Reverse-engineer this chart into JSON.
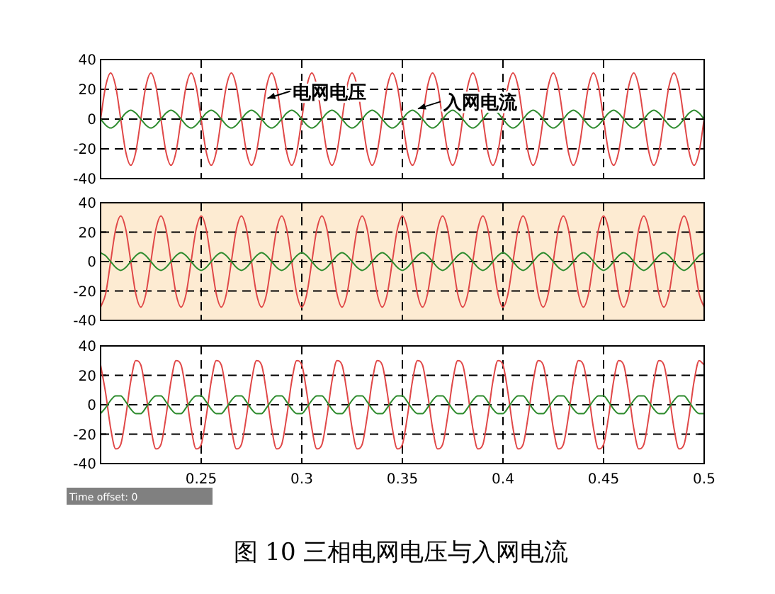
{
  "chart_data": [
    {
      "type": "line",
      "xlim": [
        0.2,
        0.5
      ],
      "ylim": [
        -40,
        40
      ],
      "yticks": [
        -40,
        -20,
        0,
        20,
        40
      ],
      "xticks": [
        0.25,
        0.3,
        0.35,
        0.4,
        0.45,
        0.5
      ],
      "grid": true,
      "tick_labels": "y",
      "line_style": "solid",
      "x": [
        0.2,
        0.2025,
        0.205,
        0.2075,
        0.21,
        0.2125,
        0.215,
        0.2175,
        0.22,
        0.2225,
        0.225,
        0.2275,
        0.23,
        0.2325,
        0.235,
        0.2375,
        0.24,
        0.2425,
        0.245,
        0.2475,
        0.25,
        0.2525,
        0.255,
        0.2575,
        0.26,
        0.2625,
        0.265,
        0.2675,
        0.27,
        0.2725,
        0.275,
        0.2775,
        0.28,
        0.2825,
        0.285,
        0.2875,
        0.29,
        0.2925,
        0.295,
        0.2975,
        0.3,
        0.3025,
        0.305,
        0.3075,
        0.31,
        0.3125,
        0.315,
        0.3175,
        0.32,
        0.3225,
        0.325,
        0.3275,
        0.33,
        0.3325,
        0.335,
        0.3375,
        0.34,
        0.3425,
        0.345,
        0.3475,
        0.35,
        0.3525,
        0.355,
        0.3575,
        0.36,
        0.3625,
        0.365,
        0.3675,
        0.37,
        0.3725,
        0.375,
        0.3775,
        0.38,
        0.3825,
        0.385,
        0.3875,
        0.39,
        0.3925,
        0.395,
        0.3975,
        0.4,
        0.4025,
        0.405,
        0.4075,
        0.41,
        0.4125,
        0.415,
        0.4175,
        0.42,
        0.4225,
        0.425,
        0.4275,
        0.43,
        0.4325,
        0.435,
        0.4375,
        0.44,
        0.4425,
        0.445,
        0.4475,
        0.45,
        0.4525,
        0.455,
        0.4575,
        0.46,
        0.4625,
        0.465,
        0.4675,
        0.47,
        0.4725,
        0.475,
        0.4775,
        0.48,
        0.4825,
        0.485,
        0.4875,
        0.49,
        0.4925,
        0.495,
        0.4975,
        0.5
      ],
      "series": [
        {
          "color": "#e04848",
          "values": [
            0,
            22,
            31,
            22,
            0,
            -22,
            -31,
            -22,
            0,
            22,
            31,
            22,
            0,
            -22,
            -31,
            -22,
            0,
            22,
            31,
            22,
            0,
            -22,
            -31,
            -22,
            0,
            22,
            31,
            22,
            0,
            -22,
            -31,
            -22,
            0,
            22,
            31,
            22,
            0,
            -22,
            -31,
            -22,
            0,
            22,
            31,
            22,
            0,
            -22,
            -31,
            -22,
            0,
            22,
            31,
            22,
            0,
            -22,
            -31,
            -22,
            0,
            22,
            31,
            22,
            0,
            -22,
            -31,
            -22,
            0,
            22,
            31,
            22,
            0,
            -22,
            -31,
            -22,
            0,
            22,
            31,
            22,
            0,
            -22,
            -31,
            -22,
            0,
            22,
            31,
            22,
            0,
            -22,
            -31,
            -22,
            0,
            22,
            31,
            22,
            0,
            -22,
            -31,
            -22,
            0,
            22,
            31,
            22,
            0,
            -22,
            -31,
            -22,
            0,
            22,
            31,
            22,
            0,
            -22,
            -31,
            -22,
            0,
            22,
            31,
            22,
            0,
            -22,
            -31,
            -22,
            0
          ]
        },
        {
          "color": "#2e8b2e",
          "values": [
            0,
            -4,
            -6,
            -4,
            0,
            4,
            6,
            4,
            0,
            -4,
            -6,
            -4,
            0,
            4,
            6,
            4,
            0,
            -4,
            -6,
            -4,
            0,
            4,
            6,
            4,
            0,
            -4,
            -6,
            -4,
            0,
            4,
            6,
            4,
            0,
            -4,
            -6,
            -4,
            0,
            4,
            6,
            4,
            0,
            -4,
            -6,
            -4,
            0,
            4,
            6,
            4,
            0,
            -4,
            -6,
            -4,
            0,
            4,
            6,
            4,
            0,
            -4,
            -6,
            -4,
            0,
            4,
            6,
            4,
            0,
            -4,
            -6,
            -4,
            0,
            4,
            6,
            4,
            0,
            -4,
            -6,
            -4,
            0,
            4,
            6,
            4,
            0,
            -4,
            -6,
            -4,
            0,
            4,
            6,
            4,
            0,
            -4,
            -6,
            -4,
            0,
            4,
            6,
            4,
            0,
            -4,
            -6,
            -4,
            0,
            4,
            6,
            4,
            0,
            -4,
            -6,
            -4,
            0,
            4,
            6,
            4,
            0,
            -4,
            -6,
            -4,
            0,
            4,
            6,
            4,
            0
          ]
        }
      ],
      "annotations": [
        {
          "text": "电网电压",
          "x": 0.2815,
          "y": 13
        },
        {
          "text": "入网电流",
          "x": 0.3563,
          "y": 6
        }
      ]
    },
    {
      "type": "line",
      "xlim": [
        0.2,
        0.5
      ],
      "ylim": [
        -40,
        40
      ],
      "yticks": [
        -40,
        -20,
        0,
        20,
        40
      ],
      "xticks": [
        0.25,
        0.3,
        0.35,
        0.4,
        0.45,
        0.5
      ],
      "grid": true,
      "tick_labels": "y",
      "line_style": "solid",
      "x": [
        0.2,
        0.2025,
        0.205,
        0.2075,
        0.21,
        0.2125,
        0.215,
        0.2175,
        0.22,
        0.2225,
        0.225,
        0.2275,
        0.23,
        0.2325,
        0.235,
        0.2375,
        0.24,
        0.2425,
        0.245,
        0.2475,
        0.25,
        0.2525,
        0.255,
        0.2575,
        0.26,
        0.2625,
        0.265,
        0.2675,
        0.27,
        0.2725,
        0.275,
        0.2775,
        0.28,
        0.2825,
        0.285,
        0.2875,
        0.29,
        0.2925,
        0.295,
        0.2975,
        0.3,
        0.3025,
        0.305,
        0.3075,
        0.31,
        0.3125,
        0.315,
        0.3175,
        0.32,
        0.3225,
        0.325,
        0.3275,
        0.33,
        0.3325,
        0.335,
        0.3375,
        0.34,
        0.3425,
        0.345,
        0.3475,
        0.35,
        0.3525,
        0.355,
        0.3575,
        0.36,
        0.3625,
        0.365,
        0.3675,
        0.37,
        0.3725,
        0.375,
        0.3775,
        0.38,
        0.3825,
        0.385,
        0.3875,
        0.39,
        0.3925,
        0.395,
        0.3975,
        0.4,
        0.4025,
        0.405,
        0.4075,
        0.41,
        0.4125,
        0.415,
        0.4175,
        0.42,
        0.4225,
        0.425,
        0.4275,
        0.43,
        0.4325,
        0.435,
        0.4375,
        0.44,
        0.4425,
        0.445,
        0.4475,
        0.45,
        0.4525,
        0.455,
        0.4575,
        0.46,
        0.4625,
        0.465,
        0.4675,
        0.47,
        0.4725,
        0.475,
        0.4775,
        0.48,
        0.4825,
        0.485,
        0.4875,
        0.49,
        0.4925,
        0.495,
        0.4975,
        0.5
      ],
      "series": [
        {
          "color": "#e04848",
          "values": [
            -31,
            -22,
            0,
            22,
            31,
            22,
            0,
            -22,
            -31,
            -22,
            0,
            22,
            31,
            22,
            0,
            -22,
            -31,
            -22,
            0,
            22,
            31,
            22,
            0,
            -22,
            -31,
            -22,
            0,
            22,
            31,
            22,
            0,
            -22,
            -31,
            -22,
            0,
            22,
            31,
            22,
            0,
            -22,
            -31,
            -22,
            0,
            22,
            31,
            22,
            0,
            -22,
            -31,
            -22,
            0,
            22,
            31,
            22,
            0,
            -22,
            -31,
            -22,
            0,
            22,
            31,
            22,
            0,
            -22,
            -31,
            -22,
            0,
            22,
            31,
            22,
            0,
            -22,
            -31,
            -22,
            0,
            22,
            31,
            22,
            0,
            -22,
            -31,
            -22,
            0,
            22,
            31,
            22,
            0,
            -22,
            -31,
            -22,
            0,
            22,
            31,
            22,
            0,
            -22,
            -31,
            -22,
            0,
            22,
            31,
            22,
            0,
            -22,
            -31,
            -22,
            0,
            22,
            31,
            22,
            0,
            -22,
            -31,
            -22,
            0,
            22,
            31,
            22,
            0,
            -22,
            -31
          ]
        },
        {
          "color": "#2e8b2e",
          "values": [
            6,
            4,
            0,
            -4,
            -6,
            -4,
            0,
            4,
            6,
            4,
            0,
            -4,
            -6,
            -4,
            0,
            4,
            6,
            4,
            0,
            -4,
            -6,
            -4,
            0,
            4,
            6,
            4,
            0,
            -4,
            -6,
            -4,
            0,
            4,
            6,
            4,
            0,
            -4,
            -6,
            -4,
            0,
            4,
            6,
            4,
            0,
            -4,
            -6,
            -4,
            0,
            4,
            6,
            4,
            0,
            -4,
            -6,
            -4,
            0,
            4,
            6,
            4,
            0,
            -4,
            -6,
            -4,
            0,
            4,
            6,
            4,
            0,
            -4,
            -6,
            -4,
            0,
            4,
            6,
            4,
            0,
            -4,
            -6,
            -4,
            0,
            4,
            6,
            4,
            0,
            -4,
            -6,
            -4,
            0,
            4,
            6,
            4,
            0,
            -4,
            -6,
            -4,
            0,
            4,
            6,
            4,
            0,
            -4,
            -6,
            -4,
            0,
            4,
            6,
            4,
            0,
            -4,
            -6,
            -4,
            0,
            4,
            6,
            4,
            0,
            -4,
            -6,
            -4,
            0,
            4,
            6
          ]
        }
      ]
    },
    {
      "type": "line",
      "xlim": [
        0.2,
        0.5
      ],
      "ylim": [
        -40,
        40
      ],
      "yticks": [
        -40,
        -20,
        0,
        20,
        40
      ],
      "xticks": [
        0.25,
        0.3,
        0.35,
        0.4,
        0.45,
        0.5
      ],
      "grid": true,
      "line_style": "solid",
      "x": [
        0.2,
        0.2025,
        0.205,
        0.2075,
        0.21,
        0.2125,
        0.215,
        0.2175,
        0.22,
        0.2225,
        0.225,
        0.2275,
        0.23,
        0.2325,
        0.235,
        0.2375,
        0.24,
        0.2425,
        0.245,
        0.2475,
        0.25,
        0.2525,
        0.255,
        0.2575,
        0.26,
        0.2625,
        0.265,
        0.2675,
        0.27,
        0.2725,
        0.275,
        0.2775,
        0.28,
        0.2825,
        0.285,
        0.2875,
        0.29,
        0.2925,
        0.295,
        0.2975,
        0.3,
        0.3025,
        0.305,
        0.3075,
        0.31,
        0.3125,
        0.315,
        0.3175,
        0.32,
        0.3225,
        0.325,
        0.3275,
        0.33,
        0.3325,
        0.335,
        0.3375,
        0.34,
        0.3425,
        0.345,
        0.3475,
        0.35,
        0.3525,
        0.355,
        0.3575,
        0.36,
        0.3625,
        0.365,
        0.3675,
        0.37,
        0.3725,
        0.375,
        0.3775,
        0.38,
        0.3825,
        0.385,
        0.3875,
        0.39,
        0.3925,
        0.395,
        0.3975,
        0.4,
        0.4025,
        0.405,
        0.4075,
        0.41,
        0.4125,
        0.415,
        0.4175,
        0.42,
        0.4225,
        0.425,
        0.4275,
        0.43,
        0.4325,
        0.435,
        0.4375,
        0.44,
        0.4425,
        0.445,
        0.4475,
        0.45,
        0.4525,
        0.455,
        0.4575,
        0.46,
        0.4625,
        0.465,
        0.4675,
        0.47,
        0.4725,
        0.475,
        0.4775,
        0.48,
        0.4825,
        0.485,
        0.4875,
        0.49,
        0.4925,
        0.495,
        0.4975,
        0.5
      ],
      "series": [
        {
          "color": "#e04848",
          "values": [
            27,
            8,
            -16,
            -30,
            -27,
            -8,
            16,
            30,
            27,
            8,
            -16,
            -30,
            -27,
            -8,
            16,
            30,
            27,
            8,
            -16,
            -30,
            -27,
            -8,
            16,
            30,
            27,
            8,
            -16,
            -30,
            -27,
            -8,
            16,
            30,
            27,
            8,
            -16,
            -30,
            -27,
            -8,
            16,
            30,
            27,
            8,
            -16,
            -30,
            -27,
            -8,
            16,
            30,
            27,
            8,
            -16,
            -30,
            -27,
            -8,
            16,
            30,
            27,
            8,
            -16,
            -30,
            -27,
            -8,
            16,
            30,
            27,
            8,
            -16,
            -30,
            -27,
            -8,
            16,
            30,
            27,
            8,
            -16,
            -30,
            -27,
            -8,
            16,
            30,
            27,
            8,
            -16,
            -30,
            -27,
            -8,
            16,
            30,
            27,
            8,
            -16,
            -30,
            -27,
            -8,
            16,
            30,
            27,
            8,
            -16,
            -30,
            -27,
            -8,
            16,
            30,
            27,
            8,
            -16,
            -30,
            -27,
            -8,
            16,
            30,
            27,
            8,
            -16,
            -30,
            -27,
            -8,
            16,
            30,
            27
          ]
        },
        {
          "color": "#2e8b2e",
          "values": [
            -6,
            -2,
            3,
            6,
            6,
            2,
            -3,
            -6,
            -6,
            -2,
            3,
            6,
            6,
            2,
            -3,
            -6,
            -6,
            -2,
            3,
            6,
            6,
            2,
            -3,
            -6,
            -6,
            -2,
            3,
            6,
            6,
            2,
            -3,
            -6,
            -6,
            -2,
            3,
            6,
            6,
            2,
            -3,
            -6,
            -6,
            -2,
            3,
            6,
            6,
            2,
            -3,
            -6,
            -6,
            -2,
            3,
            6,
            6,
            2,
            -3,
            -6,
            -6,
            -2,
            3,
            6,
            6,
            2,
            -3,
            -6,
            -6,
            -2,
            3,
            6,
            6,
            2,
            -3,
            -6,
            -6,
            -2,
            3,
            6,
            6,
            2,
            -3,
            -6,
            -6,
            -2,
            3,
            6,
            6,
            2,
            -3,
            -6,
            -6,
            -2,
            3,
            6,
            6,
            2,
            -3,
            -6,
            -6,
            -2,
            3,
            6,
            6,
            2,
            -3,
            -6,
            -6,
            -2,
            3,
            6,
            6,
            2,
            -3,
            -6,
            -6,
            -2,
            3,
            6,
            6,
            2,
            -3,
            -6,
            -6
          ]
        }
      ],
      "annotations": [
        "Time offset:  0",
        "图 10  三相电网电压与入网电流"
      ]
    }
  ]
}
